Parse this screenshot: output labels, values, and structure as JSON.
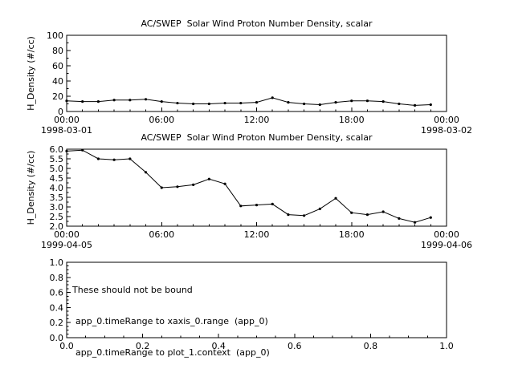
{
  "chart_data": [
    {
      "type": "line",
      "title": "AC/SWEP  Solar Wind Proton Number Density, scalar",
      "ylabel": "H_Density (#/cc)",
      "start_date": "1998-03-01",
      "end_date": "1998-03-02",
      "xlim": [
        0,
        24
      ],
      "ylim": [
        0,
        100
      ],
      "xticks": {
        "values": [
          0,
          6,
          12,
          18,
          24
        ],
        "labels": [
          "00:00",
          "06:00",
          "12:00",
          "18:00",
          "00:00"
        ]
      },
      "yticks": {
        "values": [
          0,
          20,
          40,
          60,
          80,
          100
        ],
        "labels": [
          "0",
          "20",
          "40",
          "60",
          "80",
          "100"
        ]
      },
      "x": [
        0,
        1,
        2,
        3,
        4,
        5,
        6,
        7,
        8,
        9,
        10,
        11,
        12,
        13,
        14,
        15,
        16,
        17,
        18,
        19,
        20,
        21,
        22,
        23
      ],
      "y": [
        14,
        13,
        13,
        15,
        15,
        16,
        13,
        11,
        10,
        10,
        11,
        11,
        12,
        18,
        12,
        10,
        9,
        12,
        14,
        14,
        13,
        10,
        8,
        9
      ],
      "line_color": "#000000",
      "marker": "dot"
    },
    {
      "type": "line",
      "title": "AC/SWEP  Solar Wind Proton Number Density, scalar",
      "ylabel": "H_Density (#/cc)",
      "start_date": "1999-04-05",
      "end_date": "1999-04-06",
      "xlim": [
        0,
        24
      ],
      "ylim": [
        2.0,
        6.0
      ],
      "xticks": {
        "values": [
          0,
          6,
          12,
          18,
          24
        ],
        "labels": [
          "00:00",
          "06:00",
          "12:00",
          "18:00",
          "00:00"
        ]
      },
      "yticks": {
        "values": [
          2.0,
          2.5,
          3.0,
          3.5,
          4.0,
          4.5,
          5.0,
          5.5,
          6.0
        ],
        "labels": [
          "2.0",
          "2.5",
          "3.0",
          "3.5",
          "4.0",
          "4.5",
          "5.0",
          "5.5",
          "6.0"
        ]
      },
      "x": [
        0,
        1,
        2,
        3,
        4,
        5,
        6,
        7,
        8,
        9,
        10,
        11,
        12,
        13,
        14,
        15,
        16,
        17,
        18,
        19,
        20,
        21,
        22,
        23
      ],
      "y": [
        5.9,
        5.95,
        5.5,
        5.45,
        5.5,
        4.8,
        4.0,
        4.05,
        4.15,
        4.45,
        4.2,
        3.05,
        3.1,
        3.15,
        2.6,
        2.55,
        2.9,
        3.45,
        2.7,
        2.6,
        2.75,
        2.4,
        2.2,
        2.45
      ],
      "line_color": "#000000",
      "marker": "dot"
    },
    {
      "type": "empty",
      "title": "",
      "ylabel": "",
      "xlim": [
        0,
        1
      ],
      "ylim": [
        0,
        1
      ],
      "xticks": {
        "values": [
          0,
          0.2,
          0.4,
          0.6,
          0.8,
          1.0
        ],
        "labels": [
          "0.0",
          "0.2",
          "0.4",
          "0.6",
          "0.8",
          "1.0"
        ]
      },
      "yticks": {
        "values": [
          0,
          0.2,
          0.4,
          0.6,
          0.8,
          1.0
        ],
        "labels": [
          "0.0",
          "0.2",
          "0.4",
          "0.6",
          "0.8",
          "1.0"
        ]
      },
      "x": [],
      "y": [],
      "annotations": [
        "These should not be bound",
        "app_0.timeRange to xaxis_0.range  (app_0)",
        "app_0.timeRange to plot_1.context  (app_0)"
      ]
    }
  ],
  "colors": {
    "background": "#ffffff",
    "axis": "#000000",
    "data_line": "#000000"
  }
}
